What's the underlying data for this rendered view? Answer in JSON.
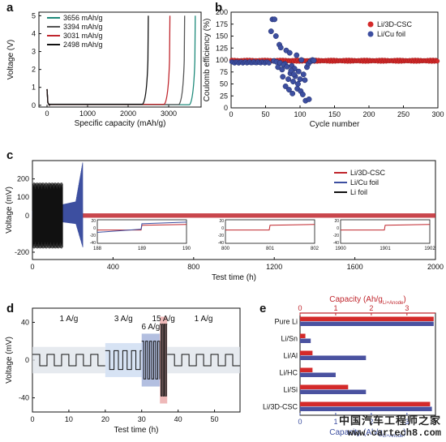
{
  "panels": [
    {
      "label": "a"
    },
    {
      "label": "b"
    },
    {
      "label": "c"
    },
    {
      "label": "d"
    },
    {
      "label": "e"
    }
  ],
  "watermark": {
    "line1": "中国汽车工程师之家",
    "line2": "www.cartech8.com"
  },
  "chart_data": [
    {
      "id": "a",
      "type": "line",
      "title": "",
      "xlabel": "Specific capacity (mAh/g)",
      "ylabel": "Voltage (V)",
      "xlim": [
        -200,
        3800
      ],
      "ylim": [
        -0.1,
        5.2
      ],
      "xticks": [
        0,
        1000,
        2000,
        3000
      ],
      "yticks": [
        0,
        1,
        2,
        3,
        4,
        5
      ],
      "legend": "top-left",
      "series": [
        {
          "name": "3656 mAh/g",
          "color": "#1e8a7a",
          "capacity": 3656
        },
        {
          "name": "3394 mAh/g",
          "color": "#555555",
          "capacity": 3394
        },
        {
          "name": "3031 mAh/g",
          "color": "#c0262d",
          "capacity": 3031
        },
        {
          "name": "2498 mAh/g",
          "color": "#111111",
          "capacity": 2498
        }
      ]
    },
    {
      "id": "b",
      "type": "scatter",
      "title": "",
      "xlabel": "Cycle number",
      "ylabel": "Coulomb efficiency (%)",
      "xlim": [
        0,
        300
      ],
      "ylim": [
        0,
        200
      ],
      "xticks": [
        0,
        50,
        100,
        150,
        200,
        250,
        300
      ],
      "yticks": [
        0,
        25,
        50,
        75,
        100,
        125,
        150,
        175,
        200
      ],
      "legend": "top-right",
      "series": [
        {
          "name": "Li/3D-CSC",
          "color": "#d42a2a",
          "baseline": 98.5
        },
        {
          "name": "Li/Cu foil",
          "color": "#3d4fa0",
          "points": [
            [
              60,
              185
            ],
            [
              63,
              185
            ],
            [
              58,
              160
            ],
            [
              65,
              150
            ],
            [
              70,
              132
            ],
            [
              72,
              126
            ],
            [
              80,
              120
            ],
            [
              85,
              115
            ],
            [
              95,
              110
            ],
            [
              102,
              100
            ],
            [
              78,
              92
            ],
            [
              88,
              88
            ],
            [
              92,
              82
            ],
            [
              98,
              76
            ],
            [
              105,
              70
            ],
            [
              75,
              65
            ],
            [
              83,
              60
            ],
            [
              90,
              55
            ],
            [
              97,
              50
            ],
            [
              68,
              85
            ],
            [
              74,
              80
            ],
            [
              86,
              72
            ],
            [
              93,
              66
            ],
            [
              100,
              60
            ],
            [
              107,
              58
            ],
            [
              110,
              85
            ],
            [
              112,
              92
            ],
            [
              115,
              97
            ],
            [
              118,
              100
            ],
            [
              120,
              99
            ],
            [
              62,
              98
            ],
            [
              66,
              96
            ],
            [
              71,
              94
            ],
            [
              76,
              90
            ],
            [
              81,
              86
            ],
            [
              87,
              78
            ],
            [
              91,
              70
            ],
            [
              96,
              40
            ],
            [
              101,
              35
            ],
            [
              104,
              28
            ],
            [
              108,
              15
            ],
            [
              113,
              18
            ],
            [
              79,
              45
            ],
            [
              84,
              38
            ],
            [
              89,
              30
            ]
          ]
        }
      ]
    },
    {
      "id": "c",
      "type": "line",
      "title": "",
      "xlabel": "Test time (h)",
      "ylabel": "Voltage (mV)",
      "xlim": [
        0,
        2000
      ],
      "ylim": [
        -240,
        300
      ],
      "xticks": [
        0,
        400,
        800,
        1200,
        1600,
        2000
      ],
      "yticks": [
        -200,
        0,
        100,
        200
      ],
      "legend": "right",
      "series": [
        {
          "name": "Li/3D-CSC",
          "color": "#c0262d",
          "amplitude": 12
        },
        {
          "name": "Li/Cu foil",
          "color": "#3d4fa0",
          "end_time": 250
        },
        {
          "name": "Li foil",
          "color": "#111111",
          "end_time": 150
        }
      ],
      "insets": [
        {
          "xticks": [
            "188",
            "189",
            "190"
          ],
          "yticks": [
            "20",
            "0",
            "-20",
            "-40"
          ]
        },
        {
          "xticks": [
            "800",
            "801",
            "802"
          ],
          "yticks": [
            "20",
            "0",
            "-20",
            "-40"
          ]
        },
        {
          "xticks": [
            "1900",
            "1901",
            "1902"
          ],
          "yticks": [
            "20",
            "0",
            "-20",
            "-40"
          ]
        }
      ]
    },
    {
      "id": "d",
      "type": "line",
      "title": "",
      "xlabel": "Test time (h)",
      "ylabel": "Voltage (mV)",
      "xlim": [
        0,
        57
      ],
      "ylim": [
        -55,
        55
      ],
      "xticks": [
        0,
        10,
        20,
        30,
        40,
        50
      ],
      "yticks": [
        -40,
        0,
        40
      ],
      "segments": [
        {
          "label": "1 A/g",
          "start": 0,
          "end": 20,
          "amplitude": 6,
          "color": "#dde3ea"
        },
        {
          "label": "3 A/g",
          "start": 20,
          "end": 30,
          "amplitude": 10,
          "color": "#c9daf0"
        },
        {
          "label": "6 A/g",
          "start": 30,
          "end": 35,
          "amplitude": 20,
          "color": "#9aa9d6"
        },
        {
          "label": "15 A/g",
          "start": 35,
          "end": 37,
          "amplitude": 38,
          "color": "#e8a0a0"
        },
        {
          "label": "1 A/g",
          "start": 37,
          "end": 57,
          "amplitude": 6,
          "color": "#dde3ea"
        }
      ]
    },
    {
      "id": "e",
      "type": "bar",
      "title": "",
      "xlabel": "Capacity (Ah/g",
      "xlabel_sub": "Li+Anode",
      "xlabel_close": ")",
      "xlim": [
        0,
        3.8
      ],
      "xticks": [
        0,
        1,
        2,
        3
      ],
      "categories": [
        "Pure Li",
        "Li/Sn",
        "Li/Al",
        "Li/HC",
        "Li/Si",
        "Li/3D-CSC"
      ],
      "series": [
        {
          "name": "red",
          "color": "#d42a2a",
          "values": [
            3.75,
            0.15,
            0.35,
            0.35,
            1.35,
            3.65
          ]
        },
        {
          "name": "blue",
          "color": "#4a52a0",
          "values": [
            3.75,
            0.3,
            1.85,
            1.0,
            1.85,
            3.7
          ]
        }
      ]
    }
  ]
}
